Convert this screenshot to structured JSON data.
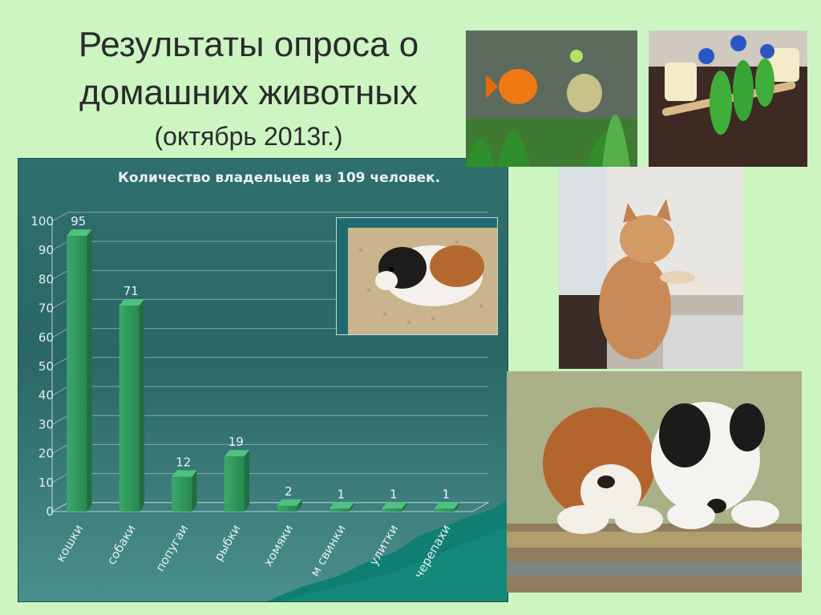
{
  "slide": {
    "title_line1": "Результаты опроса  о",
    "title_line2": "домашних животных",
    "title_line3": "(октябрь 2013г.)"
  },
  "chart_data": {
    "type": "bar",
    "title": "Количество владельцев из 109 человек.",
    "categories": [
      "кошки",
      "собаки",
      "попугаи",
      "рыбки",
      "хомяки",
      "м свинки",
      "улитки",
      "черепахи"
    ],
    "values": [
      95,
      71,
      12,
      19,
      2,
      1,
      1,
      1
    ],
    "yticks": [
      0,
      10,
      20,
      30,
      40,
      50,
      60,
      70,
      80,
      90,
      100
    ],
    "ylim": [
      0,
      100
    ],
    "grid": true,
    "legend": "none",
    "bar_color": "#2e9a5e"
  },
  "photos": [
    {
      "name": "guinea-pig-photo"
    },
    {
      "name": "fish-aquarium-photo"
    },
    {
      "name": "parrots-photo"
    },
    {
      "name": "cat-photo"
    },
    {
      "name": "puppies-photo"
    }
  ]
}
